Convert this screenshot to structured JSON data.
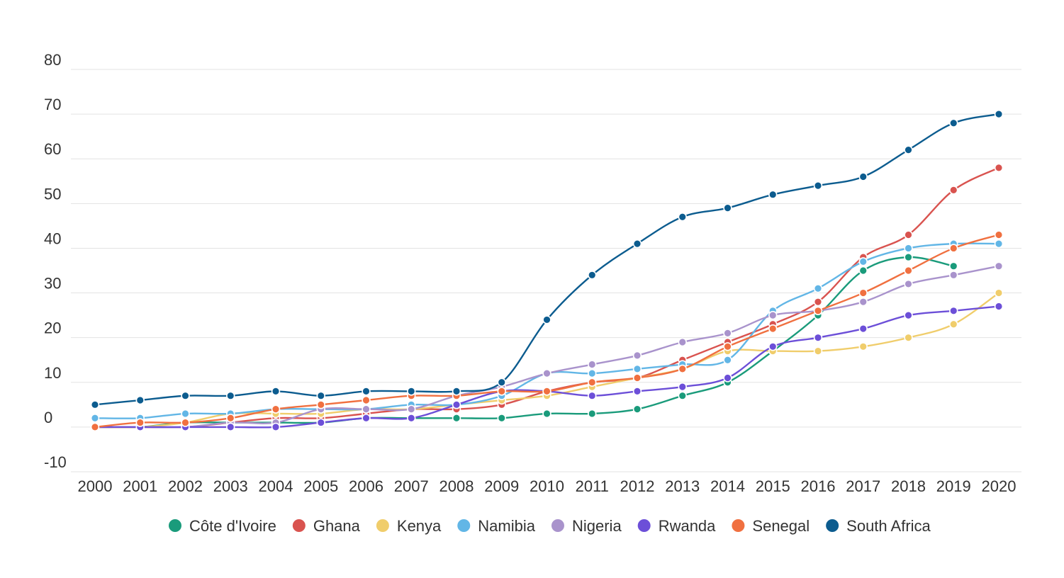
{
  "chart_data": {
    "type": "line",
    "title": "",
    "xlabel": "",
    "ylabel": "",
    "categories": [
      "2000",
      "2001",
      "2002",
      "2003",
      "2004",
      "2005",
      "2006",
      "2007",
      "2008",
      "2009",
      "2010",
      "2011",
      "2012",
      "2013",
      "2014",
      "2015",
      "2016",
      "2017",
      "2018",
      "2019",
      "2020"
    ],
    "ylim": [
      -10,
      80
    ],
    "yticks": [
      80,
      70,
      60,
      50,
      40,
      30,
      20,
      10,
      0,
      -10
    ],
    "grid": true,
    "legend_position": "bottom-center",
    "series": [
      {
        "name": "Côte d'Ivoire",
        "color": "#1a9b7b",
        "values": [
          0,
          0,
          1,
          1,
          1,
          1,
          2,
          2,
          2,
          2,
          3,
          3,
          4,
          7,
          10,
          17,
          25,
          35,
          38,
          36,
          null
        ]
      },
      {
        "name": "Ghana",
        "color": "#d9534f",
        "values": [
          0,
          0,
          0,
          1,
          2,
          2,
          3,
          4,
          4,
          5,
          8,
          10,
          11,
          15,
          19,
          23,
          28,
          38,
          43,
          53,
          58
        ]
      },
      {
        "name": "Kenya",
        "color": "#f0cd6b",
        "values": [
          0,
          0,
          1,
          3,
          3,
          3,
          4,
          4,
          5,
          6,
          7,
          9,
          11,
          13,
          17,
          17,
          17,
          18,
          20,
          23,
          30
        ]
      },
      {
        "name": "Namibia",
        "color": "#62b6e6",
        "values": [
          2,
          2,
          3,
          3,
          4,
          4,
          4,
          5,
          5,
          7,
          12,
          12,
          13,
          14,
          15,
          26,
          31,
          37,
          40,
          41,
          41
        ]
      },
      {
        "name": "Nigeria",
        "color": "#a993cc",
        "values": [
          0,
          0,
          0,
          1,
          1,
          4,
          4,
          4,
          7,
          9,
          12,
          14,
          16,
          19,
          21,
          25,
          26,
          28,
          32,
          34,
          36
        ]
      },
      {
        "name": "Rwanda",
        "color": "#6c4fd8",
        "values": [
          0,
          0,
          0,
          0,
          0,
          1,
          2,
          2,
          5,
          8,
          8,
          7,
          8,
          9,
          11,
          18,
          20,
          22,
          25,
          26,
          27
        ]
      },
      {
        "name": "Senegal",
        "color": "#f07040",
        "values": [
          0,
          1,
          1,
          2,
          4,
          5,
          6,
          7,
          7,
          8,
          8,
          10,
          11,
          13,
          18,
          22,
          26,
          30,
          35,
          40,
          43
        ]
      },
      {
        "name": "South Africa",
        "color": "#0c5c8f",
        "values": [
          5,
          6,
          7,
          7,
          8,
          7,
          8,
          8,
          8,
          10,
          24,
          34,
          41,
          47,
          49,
          52,
          54,
          56,
          62,
          68,
          70
        ]
      }
    ]
  }
}
